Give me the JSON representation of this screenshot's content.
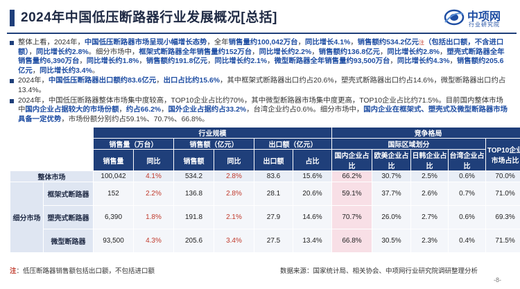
{
  "title": "2024年中国低压断路器行业发展概况[总括]",
  "logo": {
    "name": "中项网",
    "sub": "行业研究院"
  },
  "bullets": [
    {
      "segments": [
        {
          "t": "整体上看，2024年，",
          "hl": false
        },
        {
          "t": "中国低压断路器市场呈现小幅增长态势",
          "hl": true
        },
        {
          "t": "，全年",
          "hl": false
        },
        {
          "t": "销售量约100,042万台",
          "hl": true
        },
        {
          "t": "，",
          "hl": false
        },
        {
          "t": "同比增长4.1%",
          "hl": true
        },
        {
          "t": "，",
          "hl": false
        },
        {
          "t": "销售额约534.2亿元",
          "hl": true
        },
        {
          "t": "注",
          "sup": true
        },
        {
          "t": "（包括出口额，不含进口额）",
          "hl": true
        },
        {
          "t": "，",
          "hl": false
        },
        {
          "t": "同比增长约2.8%",
          "hl": true
        },
        {
          "t": "。细分市场中，",
          "hl": false
        },
        {
          "t": "框架式断路器全年销售量约152万台",
          "hl": true
        },
        {
          "t": "，",
          "hl": false
        },
        {
          "t": "同比增长约2.2%",
          "hl": true
        },
        {
          "t": "，",
          "hl": false
        },
        {
          "t": "销售额约136.8亿元",
          "hl": true
        },
        {
          "t": "，",
          "hl": false
        },
        {
          "t": "同比增长约2.8%",
          "hl": true
        },
        {
          "t": "，",
          "hl": false
        },
        {
          "t": "塑壳式断路器全年销售量约6,390万台",
          "hl": true
        },
        {
          "t": "，",
          "hl": false
        },
        {
          "t": "同比增长约1.8%",
          "hl": true
        },
        {
          "t": "，",
          "hl": false
        },
        {
          "t": "销售额约191.8亿元",
          "hl": true
        },
        {
          "t": "，",
          "hl": false
        },
        {
          "t": "同比增长约2.1%",
          "hl": true
        },
        {
          "t": "，",
          "hl": false
        },
        {
          "t": "微型断路器全年销售量约93,500万台",
          "hl": true
        },
        {
          "t": "，",
          "hl": false
        },
        {
          "t": "同比增长约4.3%",
          "hl": true
        },
        {
          "t": "，",
          "hl": false
        },
        {
          "t": "销售额约205.6亿元",
          "hl": true
        },
        {
          "t": "，",
          "hl": false
        },
        {
          "t": "同比增长约3.4%",
          "hl": true
        },
        {
          "t": "。",
          "hl": false
        }
      ]
    },
    {
      "segments": [
        {
          "t": "2024年，",
          "hl": false
        },
        {
          "t": "中国低压断路器出口额约83.6亿元",
          "hl": true
        },
        {
          "t": "，",
          "hl": false
        },
        {
          "t": "出口占比约15.6%",
          "hl": true
        },
        {
          "t": "，其中框架式断路器出口约占20.6%，塑壳式断路器出口约占14.6%，微型断路器出口约占13.4%。",
          "hl": false
        }
      ]
    },
    {
      "segments": [
        {
          "t": "2024年，中国低压断路器整体市场集中度较高，TOP10企业占比约70%，其中微型断路器市场集中度更高，TOP10企业占比约71.5%。目前国内整体市场中",
          "hl": false
        },
        {
          "t": "国内企业占据较大的市场份额",
          "hl": true
        },
        {
          "t": "，",
          "hl": false
        },
        {
          "t": "约占66.2%",
          "hl": true
        },
        {
          "t": "，",
          "hl": false
        },
        {
          "t": "国外企业占据约占33.2%",
          "hl": true
        },
        {
          "t": "，台湾企业约占0.6%。细分市场中，",
          "hl": false
        },
        {
          "t": "国内企业在框架式、塑壳式及微型断路器市场具备一定优势",
          "hl": true
        },
        {
          "t": "，市场份额分别约占59.1%、70.7%、66.8%。",
          "hl": false
        }
      ]
    }
  ],
  "table": {
    "group_headers": {
      "scale": "行业规模",
      "competition": "竞争格局",
      "region": "国际区域划分"
    },
    "sub_headers": {
      "sales_volume": "销售量（万台）",
      "sales_value": "销售额（亿元）",
      "export_value": "出口额（亿元）"
    },
    "col_headers": {
      "vol": "销售量",
      "vol_yoy": "同比",
      "val": "销售额",
      "val_yoy": "同比",
      "exp": "出口额",
      "exp_share": "占比",
      "domestic": "国内企业占比",
      "euro_us": "欧美企业占比",
      "jp_kr": "日韩企业占比",
      "taiwan": "台湾企业占比",
      "top10": "TOP10企业市场占比"
    },
    "total_row": {
      "label": "整体市场",
      "values": [
        "100,042",
        "4.1%",
        "534.2",
        "2.8%",
        "83.6",
        "15.6%",
        "66.2%",
        "30.7%",
        "2.5%",
        "0.6%",
        "70.0%"
      ]
    },
    "segment_label": "细分市场",
    "rows": [
      {
        "label": "框架式断路器",
        "values": [
          "152",
          "2.2%",
          "136.8",
          "2.8%",
          "28.1",
          "20.6%",
          "59.1%",
          "37.7%",
          "2.6%",
          "0.7%",
          "71.0%"
        ]
      },
      {
        "label": "塑壳式断路器",
        "values": [
          "6,390",
          "1.8%",
          "191.8",
          "2.1%",
          "27.9",
          "14.6%",
          "70.7%",
          "26.0%",
          "2.7%",
          "0.6%",
          "69.3%"
        ]
      },
      {
        "label": "微型断路器",
        "values": [
          "93,500",
          "4.3%",
          "205.6",
          "3.4%",
          "27.5",
          "13.4%",
          "66.8%",
          "30.5%",
          "2.3%",
          "0.4%",
          "71.5%"
        ]
      }
    ]
  },
  "note": {
    "prefix": "注",
    "text": "：低压断路器销售额包括出口额，不包括进口额"
  },
  "source": "数据来源：国家统计局、相关协会、中项网行业研究院调研整理分析",
  "page_number": "-8-",
  "colors": {
    "navy": "#1f3f7a",
    "highlight": "#1f4ea3",
    "red": "#c0392b",
    "pink": "#f8dfe6"
  }
}
